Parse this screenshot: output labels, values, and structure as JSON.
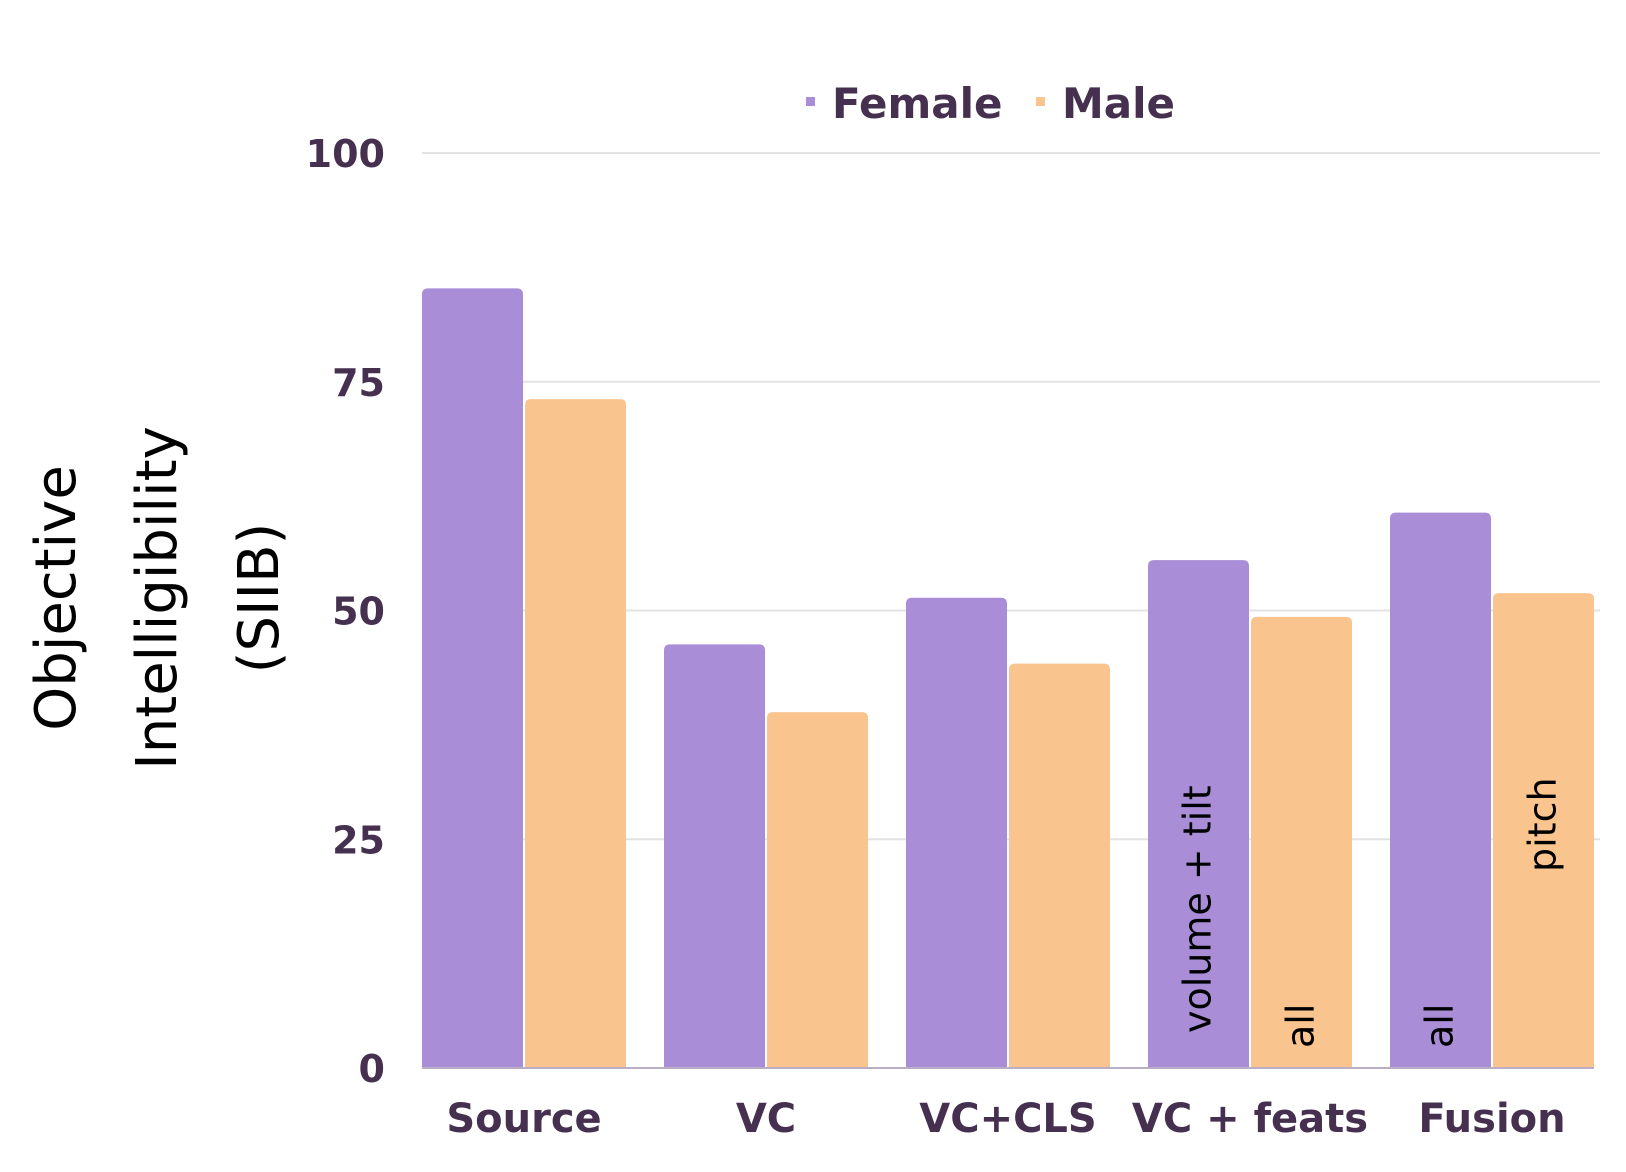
{
  "chart_data": {
    "type": "bar",
    "title": "",
    "xlabel": "",
    "ylabel_lines": [
      "Objective",
      "Intelligibility",
      "(SIIB)"
    ],
    "ylabel": "Objective Intelligibility (SIIB)",
    "ylim": [
      0,
      100
    ],
    "yticks": [
      0,
      25,
      50,
      75,
      100
    ],
    "grid": true,
    "legend_position": "top-center",
    "categories": [
      "Source",
      "VC",
      "VC+CLS",
      "VC + feats",
      "Fusion"
    ],
    "series": [
      {
        "name": "Female",
        "color": "#a98ed7",
        "values": [
          85.2,
          46.3,
          51.4,
          55.5,
          60.7
        ]
      },
      {
        "name": "Male",
        "color": "#f9c48e",
        "values": [
          73.1,
          38.9,
          44.2,
          49.3,
          51.9
        ]
      }
    ],
    "annotations": [
      {
        "category": "VC + feats",
        "series": "Female",
        "text": "volume +  tilt"
      },
      {
        "category": "VC + feats",
        "series": "Male",
        "text": "all"
      },
      {
        "category": "Fusion",
        "series": "Female",
        "text": "all"
      },
      {
        "category": "Fusion",
        "series": "Male",
        "text": "pitch"
      }
    ]
  },
  "colors": {
    "text": "#46304f",
    "grid": "#e3e3e3",
    "axis": "#b9aec4"
  }
}
